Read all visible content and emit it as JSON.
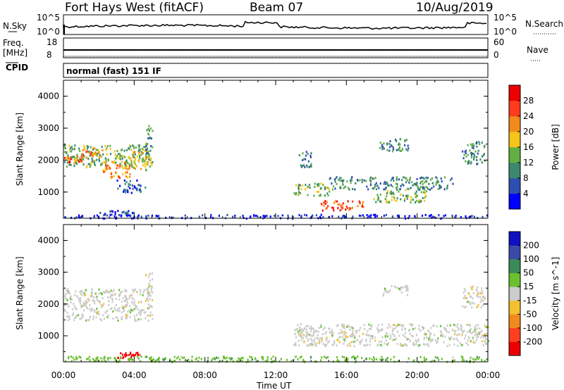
{
  "header": {
    "title": "Fort Hays West (fitACF)",
    "beam": "Beam 07",
    "date": "10/Aug/2019"
  },
  "strip_labels": {
    "nsky": "N.Sky",
    "nsearch": "N.Search",
    "freq_line1": "Freq.",
    "freq_line2": "[MHz]",
    "nave": "Nave",
    "cpid": "CPID",
    "cpid_value": "normal (fast) 151 IF",
    "noise_ticks": [
      "10^5",
      "10^0"
    ],
    "freq_ticks": [
      "18",
      "8"
    ],
    "nave_ticks": [
      "60",
      "0"
    ]
  },
  "colors": {
    "noise_trace": "#000000",
    "data_gray": "#cccccc",
    "axis": "#000000"
  },
  "chart_data": [
    {
      "type": "heatmap",
      "name": "power",
      "ylabel": "Slant Range [km]",
      "ylim": [
        180,
        4500
      ],
      "yticks": [
        "1000",
        "2000",
        "3000",
        "4000"
      ],
      "xlabel": "Time UT",
      "xlim_hours": [
        0,
        24
      ],
      "xticks": [
        "00:00",
        "04:00",
        "08:00",
        "12:00",
        "16:00",
        "20:00",
        "00:00"
      ],
      "colorbar": {
        "label": "Power [dB]",
        "ticks": [
          "4",
          "8",
          "12",
          "16",
          "20",
          "24",
          "28"
        ],
        "colors": [
          "#0000ff",
          "#2f4fb0",
          "#3b8a6e",
          "#62b043",
          "#f5c518",
          "#f08a1c",
          "#ff3b1e",
          "#ee0000"
        ]
      },
      "bands": [
        {
          "t": [
            0,
            1.0
          ],
          "r": [
            1950,
            2150
          ],
          "level": 6
        },
        {
          "t": [
            0,
            5.0
          ],
          "r": [
            1800,
            2500
          ],
          "level": 3
        },
        {
          "t": [
            1.0,
            2.2
          ],
          "r": [
            2100,
            2400
          ],
          "level": 5
        },
        {
          "t": [
            2.2,
            3.8
          ],
          "r": [
            1450,
            2000
          ],
          "level": 5
        },
        {
          "t": [
            3.8,
            4.8
          ],
          "r": [
            1700,
            2300
          ],
          "level": 4
        },
        {
          "t": [
            4.6,
            5.0
          ],
          "r": [
            2200,
            3100
          ],
          "level": 2
        },
        {
          "t": [
            3.0,
            4.6
          ],
          "r": [
            1000,
            1400
          ],
          "level": 1
        },
        {
          "t": [
            13.0,
            15.0
          ],
          "r": [
            900,
            1300
          ],
          "level": 3
        },
        {
          "t": [
            14.5,
            17.0
          ],
          "r": [
            450,
            750
          ],
          "level": 6
        },
        {
          "t": [
            15.0,
            22.0
          ],
          "r": [
            1100,
            1500
          ],
          "level": 2
        },
        {
          "t": [
            17.5,
            20.5
          ],
          "r": [
            700,
            1100
          ],
          "level": 3
        },
        {
          "t": [
            17.8,
            19.5
          ],
          "r": [
            2300,
            2700
          ],
          "level": 2
        },
        {
          "t": [
            13.3,
            14.0
          ],
          "r": [
            1800,
            2300
          ],
          "level": 2
        },
        {
          "t": [
            22.5,
            23.8
          ],
          "r": [
            1900,
            2600
          ],
          "level": 2
        },
        {
          "t": [
            2.0,
            4.0
          ],
          "r": [
            300,
            450
          ],
          "level": 1
        },
        {
          "t": [
            0,
            24
          ],
          "r": [
            200,
            320
          ],
          "level": 0
        }
      ]
    },
    {
      "type": "heatmap",
      "name": "velocity",
      "ylabel": "Slant Range [km]",
      "ylim": [
        180,
        4500
      ],
      "yticks": [
        "1000",
        "2000",
        "3000",
        "4000"
      ],
      "xlabel": "Time UT",
      "xlim_hours": [
        0,
        24
      ],
      "xticks": [
        "00:00",
        "04:00",
        "08:00",
        "12:00",
        "16:00",
        "20:00",
        "00:00"
      ],
      "colorbar": {
        "label": "Velocity [m s^-1]",
        "ticks": [
          "200",
          "100",
          "50",
          "15",
          "-15",
          "-50",
          "-100",
          "-200"
        ],
        "colors": [
          "#1010c0",
          "#3a4aa8",
          "#3a8a5a",
          "#6ac02e",
          "#cccccc",
          "#f5c030",
          "#f08a1c",
          "#ff4020",
          "#ee0000"
        ]
      },
      "bands": [
        {
          "t": [
            0,
            5.0
          ],
          "r": [
            1500,
            2500
          ],
          "level": 4
        },
        {
          "t": [
            4.6,
            5.0
          ],
          "r": [
            2200,
            3000
          ],
          "level": 4
        },
        {
          "t": [
            13.0,
            24.0
          ],
          "r": [
            700,
            1400
          ],
          "level": 4
        },
        {
          "t": [
            17.8,
            19.5
          ],
          "r": [
            2300,
            2600
          ],
          "level": 4
        },
        {
          "t": [
            22.5,
            23.8
          ],
          "r": [
            1900,
            2600
          ],
          "level": 4
        },
        {
          "t": [
            3.0,
            4.3
          ],
          "r": [
            320,
            500
          ],
          "level": 8
        },
        {
          "t": [
            0,
            24
          ],
          "r": [
            200,
            380
          ],
          "level": 3
        }
      ]
    }
  ]
}
